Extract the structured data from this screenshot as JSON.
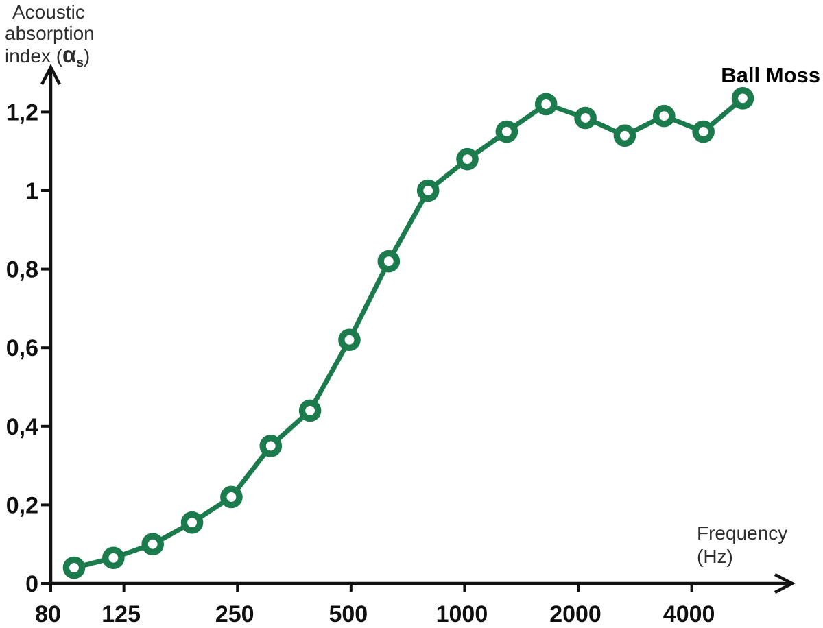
{
  "chart_data": {
    "type": "line",
    "title": "Ball Moss",
    "xlabel": "Frequency (Hz)",
    "ylabel": "Acoustic absorption index (αs)",
    "x_axis": {
      "scale": "log",
      "tick_values": [
        80,
        125,
        250,
        500,
        1000,
        2000,
        4000
      ],
      "tick_labels": [
        "80",
        "125",
        "250",
        "500",
        "1000",
        "2000",
        "4000"
      ],
      "range": [
        80,
        5600
      ]
    },
    "y_axis": {
      "tick_values": [
        0,
        0.2,
        0.4,
        0.6,
        0.8,
        1,
        1.2
      ],
      "tick_labels": [
        "0",
        "0,2",
        "0,4",
        "0,6",
        "0,8",
        "1",
        "1,2"
      ],
      "range": [
        0,
        1.3
      ]
    },
    "grid": false,
    "legend_position": "top-right",
    "series": [
      {
        "name": "Ball Moss",
        "x": [
          100,
          125,
          160,
          200,
          250,
          315,
          400,
          500,
          630,
          800,
          1000,
          1250,
          1600,
          2000,
          2500,
          3150,
          4000,
          5000
        ],
        "values": [
          0.04,
          0.065,
          0.1,
          0.155,
          0.22,
          0.35,
          0.44,
          0.62,
          0.82,
          1.0,
          1.08,
          1.15,
          1.22,
          1.185,
          1.14,
          1.19,
          1.15,
          1.235
        ],
        "marker": "open-circle"
      }
    ]
  },
  "labels": {
    "y_title_line1": "Acoustic",
    "y_title_line2": "absorption",
    "y_title_line3_prefix": "index (",
    "alpha": "α",
    "alpha_sub": "s",
    "y_title_close": ")",
    "x_title_line1": "Frequency",
    "x_title_line2": "(Hz)"
  },
  "colors": {
    "line": "#1B7B4C",
    "axis": "#111111",
    "tick_text": "#0f0f0f",
    "label_text": "#2e2e2e",
    "background": "#ffffff"
  }
}
